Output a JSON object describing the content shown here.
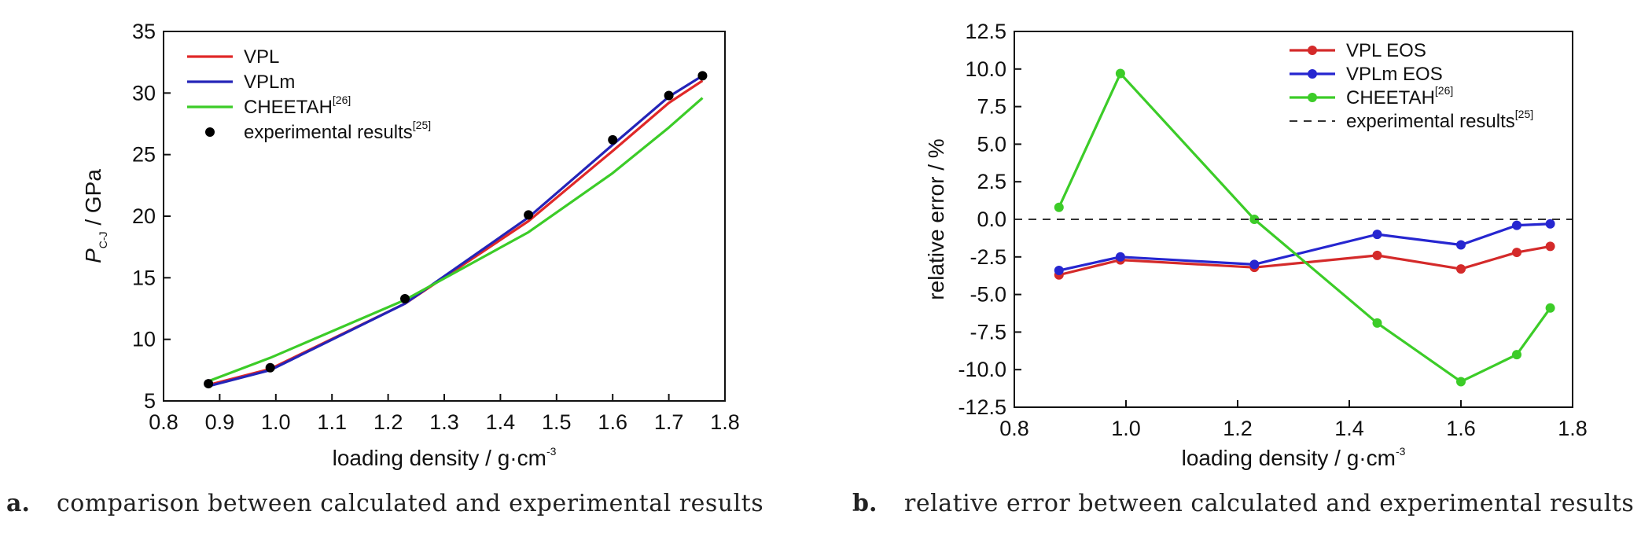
{
  "chart_data": [
    {
      "type": "line",
      "title": "",
      "xlabel": "loading density / g·cm",
      "xlabel_sup": "-3",
      "ylabel_main": "P",
      "ylabel_sub": "C-J",
      "ylabel_rest": " / GPa",
      "xlim": [
        0.8,
        1.8
      ],
      "ylim": [
        5,
        35
      ],
      "xticks": [
        "0.8",
        "0.9",
        "1.0",
        "1.1",
        "1.2",
        "1.3",
        "1.4",
        "1.5",
        "1.6",
        "1.7",
        "1.8"
      ],
      "yticks": [
        "5",
        "10",
        "15",
        "20",
        "25",
        "30",
        "35"
      ],
      "legend_position": "top-left",
      "series": [
        {
          "name": "VPL",
          "sup": "",
          "color": "#e02828",
          "style": "line",
          "x": [
            0.88,
            0.99,
            1.23,
            1.45,
            1.6,
            1.7,
            1.76
          ],
          "y": [
            6.3,
            7.6,
            12.9,
            19.6,
            25.3,
            29.2,
            31.0
          ]
        },
        {
          "name": "VPLm",
          "sup": "",
          "color": "#2424b8",
          "style": "line",
          "x": [
            0.88,
            0.99,
            1.23,
            1.45,
            1.6,
            1.7,
            1.76
          ],
          "y": [
            6.2,
            7.5,
            12.9,
            19.9,
            25.8,
            29.7,
            31.4
          ]
        },
        {
          "name": "CHEETAH",
          "sup": "[26]",
          "color": "#3ccc28",
          "style": "line",
          "x": [
            0.88,
            0.99,
            1.23,
            1.45,
            1.6,
            1.7,
            1.76
          ],
          "y": [
            6.6,
            8.5,
            13.2,
            18.7,
            23.5,
            27.2,
            29.6
          ]
        },
        {
          "name": "experimental results",
          "sup": "[25]",
          "color": "#000000",
          "style": "points",
          "x": [
            0.88,
            0.99,
            1.23,
            1.45,
            1.6,
            1.7,
            1.76
          ],
          "y": [
            6.4,
            7.7,
            13.3,
            20.1,
            26.2,
            29.8,
            31.4
          ]
        }
      ]
    },
    {
      "type": "line",
      "title": "",
      "xlabel": "loading density / g·cm",
      "xlabel_sup": "-3",
      "ylabel": "relative error / %",
      "xlim": [
        0.8,
        1.8
      ],
      "ylim": [
        -12.5,
        12.5
      ],
      "xticks": [
        "0.8",
        "1.0",
        "1.2",
        "1.4",
        "1.6",
        "1.8"
      ],
      "yticks": [
        "-12.5",
        "-10.0",
        "-7.5",
        "-5.0",
        "-2.5",
        "0.0",
        "2.5",
        "5.0",
        "7.5",
        "10.0",
        "12.5"
      ],
      "legend_position": "top-right",
      "series": [
        {
          "name": "VPL EOS",
          "sup": "",
          "color": "#d42a2a",
          "style": "line-points",
          "x": [
            0.88,
            0.99,
            1.23,
            1.45,
            1.6,
            1.7,
            1.76
          ],
          "y": [
            -3.7,
            -2.7,
            -3.2,
            -2.4,
            -3.3,
            -2.2,
            -1.8
          ]
        },
        {
          "name": "VPLm EOS",
          "sup": "",
          "color": "#2626d0",
          "style": "line-points",
          "x": [
            0.88,
            0.99,
            1.23,
            1.45,
            1.6,
            1.7,
            1.76
          ],
          "y": [
            -3.4,
            -2.5,
            -3.0,
            -1.0,
            -1.7,
            -0.4,
            -0.3
          ]
        },
        {
          "name": "CHEETAH",
          "sup": "[26]",
          "color": "#3ccc28",
          "style": "line-points",
          "x": [
            0.88,
            0.99,
            1.23,
            1.45,
            1.6,
            1.7,
            1.76
          ],
          "y": [
            0.8,
            9.7,
            0.0,
            -6.9,
            -10.8,
            -9.0,
            -5.9
          ]
        },
        {
          "name": "experimental results",
          "sup": "[25]",
          "color": "#333333",
          "style": "dashed",
          "x": [
            0.8,
            1.8
          ],
          "y": [
            0.0,
            0.0
          ]
        }
      ]
    }
  ],
  "captions": {
    "a_label": "a.",
    "a_text": "comparison between calculated and experimental results",
    "b_label": "b.",
    "b_text": "relative error between calculated and experimental results"
  }
}
